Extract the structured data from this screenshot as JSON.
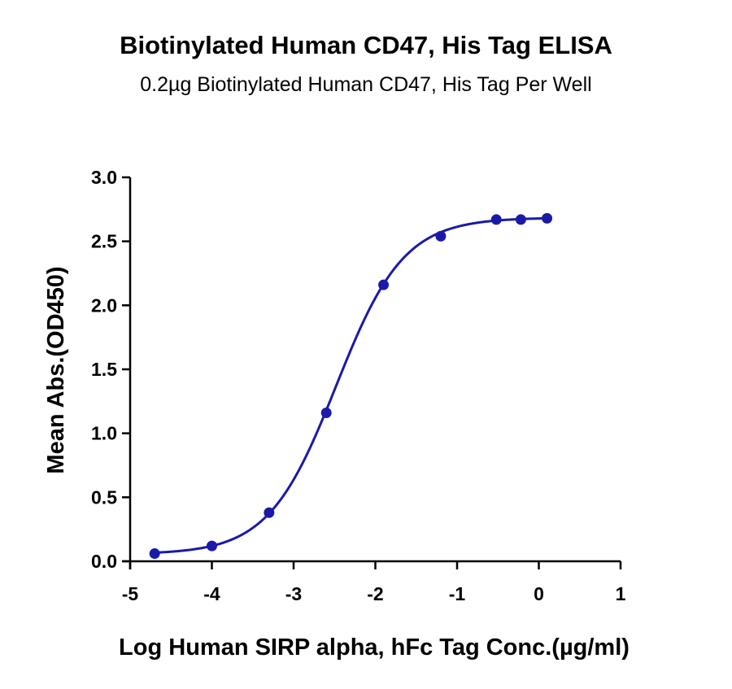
{
  "chart_data": {
    "type": "scatter",
    "title": "Biotinylated Human CD47, His Tag ELISA",
    "subtitle": "0.2µg Biotinylated Human CD47, His Tag Per Well",
    "xlabel": "Log Human SIRP alpha, hFc Tag Conc.(µg/ml)",
    "ylabel": "Mean Abs.(OD450)",
    "xlim": [
      -5,
      1
    ],
    "ylim": [
      0,
      3.0
    ],
    "x_ticks": [
      "-5",
      "-4",
      "-3",
      "-2",
      "-1",
      "0",
      "1"
    ],
    "y_ticks": [
      "0.0",
      "0.5",
      "1.0",
      "1.5",
      "2.0",
      "2.5",
      "3.0"
    ],
    "series": [
      {
        "color": "#1a1aa8",
        "x": [
          -4.7,
          -4.0,
          -3.3,
          -2.6,
          -1.9,
          -1.2,
          -0.52,
          -0.22,
          0.1
        ],
        "y": [
          0.06,
          0.12,
          0.38,
          1.16,
          2.16,
          2.54,
          2.67,
          2.67,
          2.68
        ],
        "fit_curve": {
          "bottom": 0.055,
          "top": 2.685,
          "log_ec50": -2.48,
          "hill_slope": 1.05
        }
      }
    ],
    "grid": false,
    "legend": "none"
  }
}
